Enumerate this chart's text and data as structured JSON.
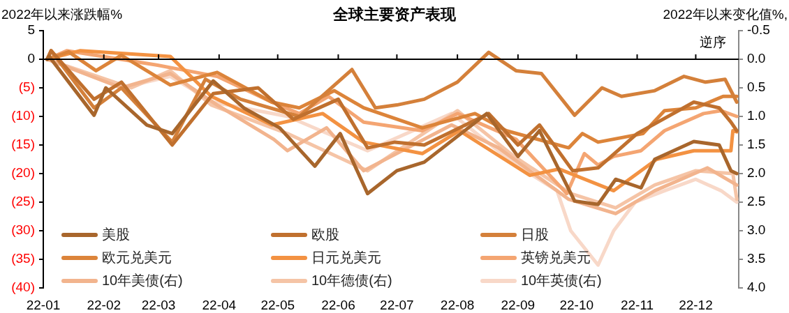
{
  "chart_data": {
    "type": "line",
    "title": "全球主要资产表现",
    "ylabel": "2022年以来涨跌幅%",
    "y2label": "2022年以来变化值%,",
    "annotations": [
      "逆序"
    ],
    "xlim": [
      "2022-01-01",
      "2022-12-23"
    ],
    "xticks": [
      {
        "value": "2022-01-01",
        "label": "22-01"
      },
      {
        "value": "2022-02-01",
        "label": "22-02"
      },
      {
        "value": "2022-03-01",
        "label": "22-03"
      },
      {
        "value": "2022-04-01",
        "label": "22-04"
      },
      {
        "value": "2022-05-01",
        "label": "22-05"
      },
      {
        "value": "2022-06-01",
        "label": "22-06"
      },
      {
        "value": "2022-07-01",
        "label": "22-07"
      },
      {
        "value": "2022-08-01",
        "label": "22-08"
      },
      {
        "value": "2022-09-01",
        "label": "22-09"
      },
      {
        "value": "2022-10-01",
        "label": "22-10"
      },
      {
        "value": "2022-11-01",
        "label": "22-11"
      },
      {
        "value": "2022-12-01",
        "label": "22-12"
      }
    ],
    "ylim": [
      -40,
      5
    ],
    "yticks": [
      5,
      0,
      {
        "value": -5,
        "label": "(5)"
      },
      {
        "value": -10,
        "label": "(10)"
      },
      {
        "value": -15,
        "label": "(15)"
      },
      {
        "value": -20,
        "label": "(20)"
      },
      {
        "value": -25,
        "label": "(25)"
      },
      {
        "value": -30,
        "label": "(30)"
      },
      {
        "value": -35,
        "label": "(35)"
      },
      {
        "value": -40,
        "label": "(40)"
      }
    ],
    "y2lim": [
      4.0,
      -0.5
    ],
    "y2ticks": [
      -0.5,
      {
        "value": 0,
        "label": "0.0"
      },
      0.5,
      {
        "value": 1,
        "label": "1.0"
      },
      1.5,
      {
        "value": 2,
        "label": "2.0"
      },
      2.5,
      {
        "value": 3,
        "label": "3.0"
      },
      3.5,
      {
        "value": 4,
        "label": "4.0"
      }
    ],
    "legend": "bottom left",
    "series": [
      {
        "name": "美股",
        "color": "#a8662c",
        "x": [
          "2022-01-03",
          "2022-01-04",
          "2022-01-27",
          "2022-02-02",
          "2022-02-23",
          "2022-03-08",
          "2022-03-29",
          "2022-04-14",
          "2022-05-02",
          "2022-05-20",
          "2022-06-02",
          "2022-06-16",
          "2022-07-01",
          "2022-07-15",
          "2022-08-16",
          "2022-09-01",
          "2022-09-12",
          "2022-09-30",
          "2022-10-12",
          "2022-10-21",
          "2022-11-03",
          "2022-11-10",
          "2022-11-30",
          "2022-12-13",
          "2022-12-19",
          "2022-12-22"
        ],
        "values": [
          0,
          0.5,
          -9.8,
          -5,
          -11.5,
          -13,
          -3.8,
          -8.6,
          -12,
          -18.7,
          -13,
          -23.5,
          -19.5,
          -18,
          -9.5,
          -17,
          -12.5,
          -24.8,
          -25.4,
          -21,
          -22.5,
          -17.5,
          -14.4,
          -15,
          -19.5,
          -20
        ]
      },
      {
        "name": "欧股",
        "color": "#c0702e",
        "x": [
          "2022-01-03",
          "2022-01-05",
          "2022-01-27",
          "2022-02-10",
          "2022-03-08",
          "2022-03-29",
          "2022-04-21",
          "2022-05-09",
          "2022-06-01",
          "2022-06-16",
          "2022-06-30",
          "2022-07-15",
          "2022-08-17",
          "2022-09-01",
          "2022-09-12",
          "2022-09-29",
          "2022-10-12",
          "2022-11-01",
          "2022-11-30",
          "2022-12-13",
          "2022-12-19",
          "2022-12-22"
        ],
        "values": [
          0,
          1.5,
          -7,
          -4,
          -15,
          -6,
          -5,
          -10.5,
          -7,
          -15.5,
          -14.5,
          -15,
          -9.5,
          -15,
          -11.5,
          -19.5,
          -19,
          -13,
          -7.5,
          -8.5,
          -11,
          -12.5
        ]
      },
      {
        "name": "日股",
        "color": "#d4803a",
        "x": [
          "2022-01-03",
          "2022-01-05",
          "2022-01-27",
          "2022-02-10",
          "2022-03-08",
          "2022-03-25",
          "2022-04-12",
          "2022-05-12",
          "2022-06-08",
          "2022-06-20",
          "2022-07-01",
          "2022-07-15",
          "2022-08-01",
          "2022-08-17",
          "2022-08-31",
          "2022-09-13",
          "2022-09-30",
          "2022-10-14",
          "2022-10-24",
          "2022-11-10",
          "2022-11-25",
          "2022-12-06",
          "2022-12-16",
          "2022-12-22"
        ],
        "values": [
          0,
          1.5,
          -8.5,
          -5,
          -14.5,
          -3.5,
          -7,
          -10,
          -1.8,
          -8.5,
          -8,
          -7,
          -4,
          1.2,
          -2,
          -2.5,
          -9.8,
          -5,
          -6.5,
          -5.5,
          -3,
          -4,
          -3.5,
          -7.5
        ]
      },
      {
        "name": "欧元兑美元",
        "color": "#dc843a",
        "x": [
          "2022-01-03",
          "2022-01-14",
          "2022-01-28",
          "2022-02-10",
          "2022-03-07",
          "2022-03-31",
          "2022-04-28",
          "2022-05-12",
          "2022-05-30",
          "2022-06-14",
          "2022-07-14",
          "2022-08-10",
          "2022-08-26",
          "2022-09-27",
          "2022-10-04",
          "2022-10-12",
          "2022-11-04",
          "2022-11-15",
          "2022-12-01",
          "2022-12-15",
          "2022-12-22"
        ],
        "values": [
          0,
          1.3,
          -2,
          0.7,
          -4.5,
          -2.3,
          -7.5,
          -8.5,
          -5.5,
          -8.5,
          -12,
          -9.5,
          -12.5,
          -15.5,
          -13,
          -14.5,
          -13,
          -9,
          -8.5,
          -6.5,
          -6.5
        ]
      },
      {
        "name": "日元兑美元",
        "color": "#f39242",
        "x": [
          "2022-01-03",
          "2022-01-20",
          "2022-03-07",
          "2022-03-28",
          "2022-04-28",
          "2022-05-24",
          "2022-06-14",
          "2022-07-14",
          "2022-08-02",
          "2022-09-07",
          "2022-09-22",
          "2022-10-20",
          "2022-11-11",
          "2022-11-30",
          "2022-12-19",
          "2022-12-20",
          "2022-12-22"
        ],
        "values": [
          0,
          1.5,
          0.5,
          -6.5,
          -11.5,
          -9.5,
          -14.5,
          -16.5,
          -12.5,
          -20.3,
          -19.2,
          -23,
          -17.5,
          -16,
          -16,
          -12.5,
          -12.7
        ]
      },
      {
        "name": "英镑兑美元",
        "color": "#f4a572",
        "x": [
          "2022-01-03",
          "2022-01-13",
          "2022-02-28",
          "2022-03-31",
          "2022-04-28",
          "2022-05-12",
          "2022-05-27",
          "2022-06-14",
          "2022-07-14",
          "2022-08-01",
          "2022-08-31",
          "2022-09-26",
          "2022-10-05",
          "2022-10-12",
          "2022-10-20",
          "2022-11-03",
          "2022-11-15",
          "2022-12-05",
          "2022-12-14",
          "2022-12-22"
        ],
        "values": [
          0,
          1.5,
          -1,
          -3,
          -7.5,
          -9.5,
          -6.5,
          -11,
          -12.5,
          -9.5,
          -14,
          -23.5,
          -16.5,
          -18.5,
          -17,
          -16,
          -12.5,
          -9.5,
          -9,
          -10
        ]
      },
      {
        "name": "10年美债(右)",
        "color": "#f2b48e",
        "axis": "y2",
        "x": [
          "2022-01-03",
          "2022-02-10",
          "2022-03-07",
          "2022-03-31",
          "2022-04-29",
          "2022-05-06",
          "2022-05-26",
          "2022-06-14",
          "2022-07-29",
          "2022-08-22",
          "2022-09-27",
          "2022-10-21",
          "2022-11-10",
          "2022-12-07",
          "2022-12-22"
        ],
        "values": [
          0,
          0.5,
          0.25,
          0.8,
          1.4,
          1.6,
          1.2,
          1.95,
          1.15,
          1.55,
          2.45,
          2.7,
          2.3,
          1.9,
          2.2
        ]
      },
      {
        "name": "10年德债(右)",
        "color": "#f5c4a6",
        "axis": "y2",
        "x": [
          "2022-01-03",
          "2022-02-15",
          "2022-03-07",
          "2022-03-28",
          "2022-05-06",
          "2022-06-16",
          "2022-08-01",
          "2022-08-30",
          "2022-09-28",
          "2022-10-21",
          "2022-11-10",
          "2022-12-01",
          "2022-12-20",
          "2022-12-22"
        ],
        "values": [
          0,
          0.5,
          0.2,
          0.8,
          1.3,
          1.95,
          0.9,
          1.7,
          2.35,
          2.6,
          2.2,
          1.95,
          2.0,
          2.45
        ]
      },
      {
        "name": "10年英债(右)",
        "color": "#f8d8c8",
        "axis": "y2",
        "x": [
          "2022-01-03",
          "2022-02-10",
          "2022-03-07",
          "2022-03-29",
          "2022-05-06",
          "2022-06-16",
          "2022-07-29",
          "2022-08-31",
          "2022-09-21",
          "2022-09-28",
          "2022-10-12",
          "2022-10-20",
          "2022-10-31",
          "2022-11-15",
          "2022-12-01",
          "2022-12-14",
          "2022-12-22"
        ],
        "values": [
          0,
          0.5,
          0.3,
          0.75,
          1.0,
          1.6,
          0.95,
          1.85,
          2.3,
          3.0,
          3.6,
          3.0,
          2.5,
          2.3,
          2.1,
          2.3,
          2.5
        ]
      }
    ]
  }
}
